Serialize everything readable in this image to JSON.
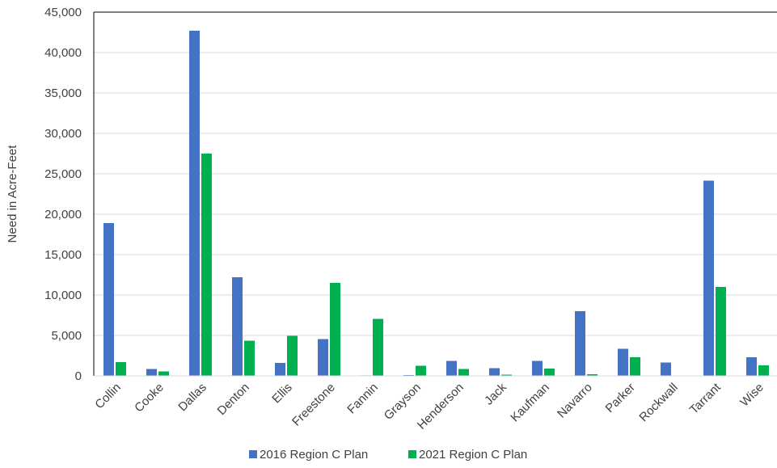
{
  "chart_data": {
    "type": "bar",
    "title": "",
    "xlabel": "",
    "ylabel": "Need in Acre-Feet",
    "ylim": [
      0,
      45000
    ],
    "yticks": [
      0,
      5000,
      10000,
      15000,
      20000,
      25000,
      30000,
      35000,
      40000,
      45000
    ],
    "ytick_labels": [
      "0",
      "5,000",
      "10,000",
      "15,000",
      "20,000",
      "25,000",
      "30,000",
      "35,000",
      "40,000",
      "45,000"
    ],
    "grid": "horizontal",
    "legend_position": "bottom",
    "categories": [
      "Collin",
      "Cooke",
      "Dallas",
      "Denton",
      "Ellis",
      "Freestone",
      "Fannin",
      "Grayson",
      "Henderson",
      "Jack",
      "Kaufman",
      "Navarro",
      "Parker",
      "Rockwall",
      "Tarrant",
      "Wise"
    ],
    "series": [
      {
        "name": "2016 Region C Plan",
        "color": "#4472C4",
        "values": [
          18900,
          850,
          42700,
          12200,
          1600,
          4550,
          60,
          100,
          1850,
          950,
          1850,
          8000,
          3350,
          1650,
          24150,
          2300
        ]
      },
      {
        "name": "2021 Region C Plan",
        "color": "#00B050",
        "values": [
          1700,
          550,
          27500,
          4350,
          4950,
          11500,
          7050,
          1250,
          850,
          150,
          900,
          200,
          2300,
          0,
          11000,
          1300
        ]
      }
    ]
  }
}
